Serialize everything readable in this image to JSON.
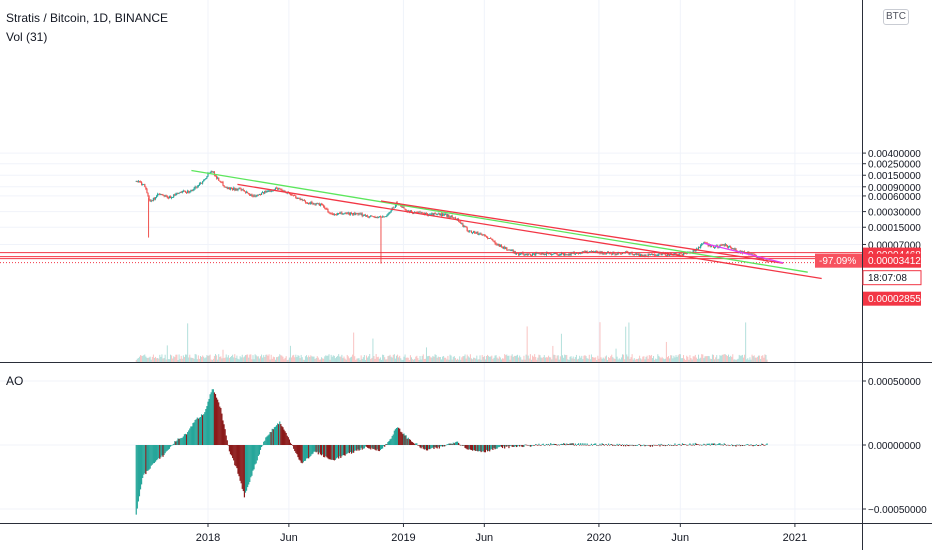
{
  "header": {
    "title": "Stratis / Bitcoin, 1D, BINANCE",
    "volume_label": "Vol (31)",
    "scale_button": "BTC"
  },
  "ao_pane": {
    "label": "AO"
  },
  "colors": {
    "up": "#26a69a",
    "down": "#ef5350",
    "ao_up": "#26a69a",
    "ao_down": "#8b1a1a",
    "green_line": "#5ce65c",
    "red_line": "#f23645",
    "magenta_line": "#e040fb",
    "grid": "#f0f3fa",
    "axis_text": "#131722",
    "tag_red": "#f23645",
    "tag_pink": "#f7525f"
  },
  "chart_data": [
    {
      "type": "candlestick",
      "title": "Stratis / Bitcoin, 1D, BINANCE",
      "scale": "log",
      "x_ticks": [
        "2018",
        "Jun",
        "2019",
        "Jun",
        "2020",
        "Jun",
        "2021"
      ],
      "y_ticks": [
        "0.00400000",
        "0.00250000",
        "0.00150000",
        "0.00090000",
        "0.00060000",
        "0.00030000",
        "0.00015000",
        "0.00007000"
      ],
      "price_path": [
        [
          "2017-08-20",
          0.0012
        ],
        [
          "2017-09-05",
          0.00095
        ],
        [
          "2017-09-15",
          0.00045
        ],
        [
          "2017-10-01",
          0.00065
        ],
        [
          "2017-10-20",
          0.00055
        ],
        [
          "2017-11-10",
          0.0007
        ],
        [
          "2017-12-01",
          0.00075
        ],
        [
          "2017-12-20",
          0.0011
        ],
        [
          "2018-01-07",
          0.0019
        ],
        [
          "2018-01-20",
          0.00125
        ],
        [
          "2018-02-05",
          0.00085
        ],
        [
          "2018-03-01",
          0.0008
        ],
        [
          "2018-03-25",
          0.0006
        ],
        [
          "2018-04-20",
          0.00072
        ],
        [
          "2018-05-10",
          0.00085
        ],
        [
          "2018-06-01",
          0.00068
        ],
        [
          "2018-07-01",
          0.00046
        ],
        [
          "2018-08-01",
          0.0004
        ],
        [
          "2018-08-20",
          0.00026
        ],
        [
          "2018-09-15",
          0.00028
        ],
        [
          "2018-10-15",
          0.00026
        ],
        [
          "2018-11-15",
          0.00023
        ],
        [
          "2018-12-01",
          0.00025
        ],
        [
          "2018-12-20",
          0.00044
        ],
        [
          "2019-01-10",
          0.0003
        ],
        [
          "2019-02-15",
          0.00027
        ],
        [
          "2019-03-20",
          0.00026
        ],
        [
          "2019-04-10",
          0.00022
        ],
        [
          "2019-05-01",
          0.00013
        ],
        [
          "2019-06-01",
          0.000105
        ],
        [
          "2019-07-01",
          6.5e-05
        ],
        [
          "2019-08-01",
          4.7e-05
        ],
        [
          "2019-09-01",
          4.5e-05
        ],
        [
          "2019-10-01",
          4.7e-05
        ],
        [
          "2019-11-01",
          4.5e-05
        ],
        [
          "2019-12-15",
          5.2e-05
        ],
        [
          "2020-01-20",
          4.7e-05
        ],
        [
          "2020-02-20",
          4.9e-05
        ],
        [
          "2020-03-20",
          4.3e-05
        ],
        [
          "2020-04-20",
          4.6e-05
        ],
        [
          "2020-05-20",
          4.5e-05
        ],
        [
          "2020-06-20",
          4.8e-05
        ],
        [
          "2020-07-15",
          7.4e-05
        ],
        [
          "2020-08-05",
          6.2e-05
        ],
        [
          "2020-08-25",
          6.8e-05
        ],
        [
          "2020-09-15",
          5.2e-05
        ],
        [
          "2020-10-05",
          4.8e-05
        ],
        [
          "2020-10-25",
          4e-05
        ],
        [
          "2020-11-10",
          3.4e-05
        ]
      ],
      "wick_spikes": [
        {
          "date": "2017-09-12",
          "low": 9.5e-05
        },
        {
          "date": "2018-11-20",
          "low": 3e-05
        },
        {
          "date": "2018-12-20",
          "high": 0.00048
        }
      ],
      "trendlines": [
        {
          "color": "green",
          "from": [
            "2017-12-01",
            0.00185
          ],
          "to": [
            "2021-01-25",
            2.05e-05
          ]
        },
        {
          "color": "red",
          "from": [
            "2018-02-25",
            0.001
          ],
          "to": [
            "2021-02-20",
            1.55e-05
          ]
        },
        {
          "color": "red",
          "from": [
            "2018-11-20",
            0.00048
          ],
          "to": [
            "2020-12-10",
            3.05e-05
          ]
        },
        {
          "color": "magenta",
          "from": [
            "2020-07-15",
            7.4e-05
          ],
          "to": [
            "2020-12-10",
            3.1e-05
          ]
        }
      ],
      "horizontal_levels": [
        4.468e-05,
        3.412e-05
      ],
      "price_tags": [
        {
          "text": "0.00004468",
          "kind": "level"
        },
        {
          "text": "0.00003412",
          "kind": "last"
        },
        {
          "text": "-97.09%",
          "kind": "change"
        },
        {
          "text": "18:07:08",
          "kind": "countdown"
        },
        {
          "text": "0.00002855",
          "kind": "level"
        }
      ]
    },
    {
      "type": "bar",
      "title": "AO",
      "y_ticks": [
        "0.00050000",
        "0.00000000",
        "−0.00050000"
      ],
      "ylim": [
        -0.0007,
        0.0006
      ],
      "path": [
        [
          "2017-08-20",
          -0.00055
        ],
        [
          "2017-09-01",
          -0.00025
        ],
        [
          "2017-09-20",
          -0.00015
        ],
        [
          "2017-10-10",
          -8e-05
        ],
        [
          "2017-11-01",
          3e-05
        ],
        [
          "2017-11-20",
          8e-05
        ],
        [
          "2017-12-10",
          0.0002
        ],
        [
          "2017-12-25",
          0.00025
        ],
        [
          "2018-01-10",
          0.00045
        ],
        [
          "2018-01-25",
          0.00028
        ],
        [
          "2018-02-10",
          -5e-05
        ],
        [
          "2018-02-25",
          -0.0002
        ],
        [
          "2018-03-10",
          -0.0004
        ],
        [
          "2018-03-25",
          -0.00022
        ],
        [
          "2018-04-15",
          3e-05
        ],
        [
          "2018-05-01",
          0.00012
        ],
        [
          "2018-05-15",
          0.00018
        ],
        [
          "2018-06-05",
          2e-05
        ],
        [
          "2018-06-25",
          -0.00015
        ],
        [
          "2018-07-20",
          -5e-05
        ],
        [
          "2018-08-20",
          -0.00012
        ],
        [
          "2018-09-20",
          -7e-05
        ],
        [
          "2018-10-20",
          -2e-05
        ],
        [
          "2018-11-20",
          -4e-05
        ],
        [
          "2018-12-05",
          3e-05
        ],
        [
          "2018-12-20",
          0.00014
        ],
        [
          "2019-01-10",
          5e-05
        ],
        [
          "2019-02-10",
          -4e-05
        ],
        [
          "2019-03-10",
          -2e-05
        ],
        [
          "2019-04-10",
          3e-05
        ],
        [
          "2019-05-05",
          -4e-05
        ],
        [
          "2019-06-01",
          -5e-05
        ],
        [
          "2019-07-01",
          -2e-05
        ],
        [
          "2019-08-01",
          -1e-05
        ],
        [
          "2019-10-01",
          5e-06
        ],
        [
          "2020-01-01",
          5e-06
        ],
        [
          "2020-04-01",
          -5e-06
        ],
        [
          "2020-07-01",
          8e-06
        ],
        [
          "2020-08-10",
          1.2e-05
        ],
        [
          "2020-09-15",
          -5e-06
        ],
        [
          "2020-11-10",
          4e-06
        ]
      ]
    }
  ]
}
